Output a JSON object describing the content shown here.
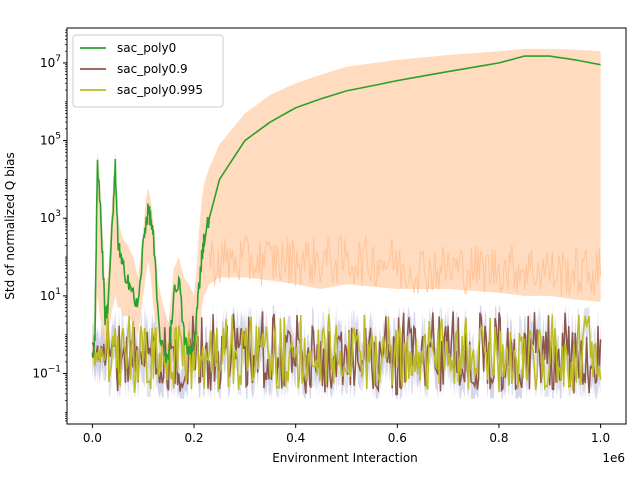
{
  "chart_data": {
    "type": "line",
    "title": "",
    "xlabel": "Environment Interaction",
    "ylabel": "Std of normalized Q bias",
    "x_offset_label": "1e6",
    "xlim": [
      -0.05,
      1.05
    ],
    "ylim_log10": [
      -2.3,
      7.9
    ],
    "yscale": "log",
    "grid": false,
    "legend_position": "top-left",
    "x_ticks": [
      0.0,
      0.2,
      0.4,
      0.6,
      0.8,
      1.0
    ],
    "x_tick_labels": [
      "0.0",
      "0.2",
      "0.4",
      "0.6",
      "0.8",
      "1.0"
    ],
    "y_ticks_log10": [
      -1,
      1,
      3,
      5,
      7
    ],
    "y_tick_labels": [
      {
        "base": "10",
        "exp": "−1"
      },
      {
        "base": "10",
        "exp": "1"
      },
      {
        "base": "10",
        "exp": "3"
      },
      {
        "base": "10",
        "exp": "5"
      },
      {
        "base": "10",
        "exp": "7"
      }
    ],
    "series": [
      {
        "name": "sac_poly0",
        "color": "#2ca02c",
        "band_color": "#ffbe8c",
        "x": [
          0.0,
          0.005,
          0.01,
          0.015,
          0.02,
          0.025,
          0.03,
          0.04,
          0.045,
          0.05,
          0.055,
          0.06,
          0.07,
          0.08,
          0.09,
          0.1,
          0.105,
          0.11,
          0.115,
          0.12,
          0.13,
          0.14,
          0.15,
          0.16,
          0.17,
          0.18,
          0.19,
          0.2,
          0.205,
          0.21,
          0.215,
          0.22,
          0.23,
          0.25,
          0.3,
          0.35,
          0.4,
          0.45,
          0.5,
          0.6,
          0.7,
          0.8,
          0.85,
          0.9,
          0.95,
          1.0
        ],
        "y": [
          0.3,
          1.0,
          30000,
          3000,
          100,
          3.0,
          5.0,
          1000,
          20000,
          300,
          100,
          50,
          30,
          10,
          5,
          200,
          800,
          1500,
          1000,
          300,
          2.0,
          0.3,
          0.3,
          10,
          30,
          1.0,
          0.3,
          0.5,
          3,
          20,
          100,
          300,
          1000,
          10000,
          100000,
          300000,
          700000,
          1200000,
          1900000,
          3500000,
          6000000,
          10000000,
          15000000,
          15000000,
          12000000,
          9000000
        ],
        "band_upper": [
          1.0,
          5.0,
          60000,
          10000,
          500,
          20,
          30,
          5000,
          60000,
          1000,
          500,
          300,
          200,
          100,
          30,
          500,
          3000,
          6000,
          3000,
          800,
          20,
          5,
          2,
          50,
          100,
          30,
          20,
          10,
          50,
          500,
          3000,
          8000,
          20000,
          80000,
          500000,
          1500000,
          3000000,
          5000000,
          8000000,
          12000000,
          16000000,
          20000000,
          23000000,
          23000000,
          22000000,
          20000000
        ],
        "band_lower": [
          0.1,
          0.5,
          10,
          3,
          1.0,
          0.5,
          1.0,
          5,
          10,
          5,
          5,
          3,
          3,
          2,
          1,
          10,
          30,
          80,
          30,
          5,
          0.5,
          0.1,
          0.1,
          0.3,
          1,
          0.2,
          0.1,
          0.2,
          0.5,
          1,
          5,
          10,
          20,
          30,
          30,
          25,
          20,
          15,
          20,
          15,
          15,
          12,
          10,
          10,
          8,
          7
        ]
      },
      {
        "name": "sac_poly0.9",
        "color": "#8c564b",
        "band_color": "#b0b0d8",
        "y_log10_center": -0.6,
        "y_log10_spread": 1.05,
        "y_log10_max": 0.6,
        "y_log10_min": -1.55
      },
      {
        "name": "sac_poly0.995",
        "color": "#bcbd22",
        "band_color": "#c8c8e0",
        "y_log10_center": -0.55,
        "y_log10_spread": 1.0,
        "y_log10_max": 0.55,
        "y_log10_min": -1.5
      }
    ]
  }
}
